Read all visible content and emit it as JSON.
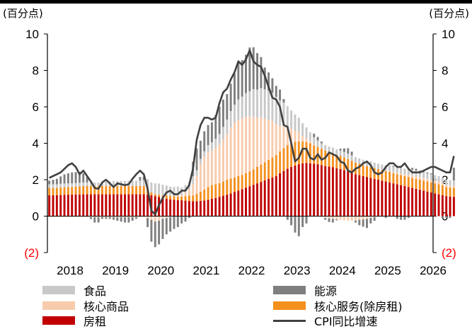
{
  "chart_data": {
    "type": "bar",
    "unit_left": "(百分点)",
    "unit_right": "(百分点)",
    "ylim": [
      -2,
      10
    ],
    "yticks": [
      "(2)",
      "0",
      "2",
      "4",
      "6",
      "8",
      "10"
    ],
    "xticks": [
      "2018",
      "2019",
      "2020",
      "2021",
      "2022",
      "2023",
      "2024",
      "2025",
      "2026"
    ],
    "start": "2018-01",
    "grid": false,
    "legend_position": "bottom",
    "colors": {
      "food": "#c8c8c8",
      "energy": "#7f7f7f",
      "core_goods": "#f8cbad",
      "core_services": "#f4901e",
      "rent": "#c00000",
      "cpi": "#404040",
      "negative_tick": "#ff0000"
    },
    "legend": {
      "food": "食品",
      "energy": "能源",
      "core_goods": "核心商品",
      "core_services": "核心服务(除房租)",
      "rent": "房租",
      "cpi": "CPI同比增速"
    },
    "series": [
      {
        "name": "房租",
        "key": "rent",
        "values": [
          1.15,
          1.15,
          1.15,
          1.16,
          1.17,
          1.18,
          1.18,
          1.19,
          1.19,
          1.2,
          1.2,
          1.2,
          1.2,
          1.2,
          1.2,
          1.2,
          1.2,
          1.2,
          1.2,
          1.2,
          1.2,
          1.2,
          1.2,
          1.2,
          1.2,
          1.2,
          1.18,
          1.15,
          1.1,
          1.05,
          0.98,
          0.95,
          0.92,
          0.9,
          0.88,
          0.87,
          0.85,
          0.83,
          0.82,
          0.82,
          0.84,
          0.86,
          0.9,
          0.95,
          1.0,
          1.06,
          1.12,
          1.18,
          1.25,
          1.32,
          1.4,
          1.48,
          1.56,
          1.64,
          1.72,
          1.8,
          1.88,
          1.96,
          2.04,
          2.12,
          2.2,
          2.35,
          2.48,
          2.6,
          2.7,
          2.78,
          2.85,
          2.9,
          2.92,
          2.9,
          2.88,
          2.85,
          2.8,
          2.75,
          2.72,
          2.68,
          2.62,
          2.58,
          2.52,
          2.45,
          2.38,
          2.3,
          2.25,
          2.2,
          2.15,
          2.1,
          2.05,
          2.0,
          1.95,
          1.9,
          1.85,
          1.8,
          1.75,
          1.7,
          1.65,
          1.6,
          1.55,
          1.5,
          1.45,
          1.4,
          1.35,
          1.3,
          1.25,
          1.2,
          1.15,
          1.1,
          1.08,
          1.06
        ]
      },
      {
        "name": "核心服务(除房租)",
        "key": "core_services",
        "values": [
          0.4,
          0.4,
          0.4,
          0.42,
          0.42,
          0.42,
          0.42,
          0.43,
          0.44,
          0.45,
          0.45,
          0.45,
          0.45,
          0.45,
          0.45,
          0.45,
          0.45,
          0.45,
          0.45,
          0.45,
          0.45,
          0.45,
          0.45,
          0.45,
          0.45,
          0.45,
          0.35,
          0.15,
          0.1,
          0.12,
          0.15,
          0.18,
          0.2,
          0.2,
          0.2,
          0.2,
          0.25,
          0.3,
          0.32,
          0.4,
          0.5,
          0.6,
          0.7,
          0.75,
          0.75,
          0.75,
          0.78,
          0.82,
          0.82,
          0.8,
          0.8,
          0.78,
          0.8,
          0.82,
          0.85,
          0.9,
          0.95,
          1.0,
          1.05,
          1.1,
          1.15,
          1.2,
          1.25,
          1.3,
          1.3,
          1.3,
          1.25,
          1.2,
          1.15,
          1.1,
          1.0,
          0.95,
          0.9,
          0.85,
          0.8,
          0.78,
          0.75,
          0.72,
          0.7,
          0.68,
          0.66,
          0.64,
          0.62,
          0.6,
          0.6,
          0.6,
          0.58,
          0.58,
          0.58,
          0.58,
          0.58,
          0.56,
          0.55,
          0.55,
          0.55,
          0.55,
          0.55,
          0.55,
          0.55,
          0.55,
          0.55,
          0.55,
          0.55,
          0.55,
          0.55,
          0.5,
          0.5,
          0.5
        ]
      },
      {
        "name": "核心商品",
        "key": "core_goods",
        "values": [
          -0.05,
          -0.06,
          -0.05,
          -0.06,
          -0.05,
          -0.06,
          -0.05,
          -0.04,
          -0.05,
          -0.06,
          -0.07,
          -0.06,
          -0.05,
          -0.05,
          -0.05,
          -0.05,
          -0.05,
          -0.05,
          -0.05,
          -0.05,
          -0.05,
          -0.05,
          -0.05,
          -0.05,
          -0.05,
          -0.05,
          -0.1,
          -0.2,
          -0.3,
          -0.25,
          -0.15,
          -0.1,
          -0.05,
          0.0,
          0.05,
          0.1,
          0.2,
          0.35,
          0.6,
          1.0,
          1.5,
          1.8,
          1.9,
          1.9,
          2.0,
          2.1,
          2.3,
          2.5,
          2.8,
          3.0,
          3.1,
          3.1,
          3.1,
          3.0,
          2.9,
          2.7,
          2.6,
          2.4,
          2.2,
          2.0,
          1.7,
          1.4,
          1.2,
          1.0,
          0.8,
          0.6,
          0.5,
          0.3,
          0.2,
          0.1,
          0.05,
          0.0,
          -0.05,
          -0.1,
          -0.12,
          -0.15,
          -0.18,
          -0.2,
          -0.22,
          -0.25,
          -0.25,
          -0.25,
          -0.2,
          -0.18,
          -0.15,
          -0.1,
          -0.05,
          0.0,
          0.0,
          0.02,
          0.05,
          0.05,
          0.08,
          0.1,
          0.1,
          0.12,
          0.15,
          0.15,
          0.15,
          0.15,
          0.15,
          0.15,
          0.15,
          0.15,
          0.12,
          0.1,
          0.1,
          0.1
        ]
      },
      {
        "name": "食品",
        "key": "food",
        "values": [
          0.2,
          0.2,
          0.2,
          0.2,
          0.2,
          0.2,
          0.2,
          0.2,
          0.2,
          0.2,
          0.2,
          0.2,
          0.2,
          0.2,
          0.22,
          0.24,
          0.26,
          0.28,
          0.28,
          0.28,
          0.28,
          0.28,
          0.3,
          0.3,
          0.3,
          0.32,
          0.5,
          0.55,
          0.6,
          0.62,
          0.6,
          0.55,
          0.5,
          0.5,
          0.5,
          0.4,
          0.4,
          0.4,
          0.45,
          0.3,
          0.3,
          0.3,
          0.4,
          0.45,
          0.5,
          0.6,
          0.7,
          0.8,
          0.9,
          1.0,
          1.1,
          1.2,
          1.3,
          1.4,
          1.5,
          1.55,
          1.6,
          1.6,
          1.6,
          1.55,
          1.5,
          1.4,
          1.3,
          1.15,
          1.0,
          0.9,
          0.8,
          0.7,
          0.6,
          0.5,
          0.4,
          0.35,
          0.3,
          0.3,
          0.3,
          0.3,
          0.3,
          0.3,
          0.3,
          0.3,
          0.3,
          0.3,
          0.3,
          0.3,
          0.3,
          0.3,
          0.3,
          0.3,
          0.3,
          0.3,
          0.3,
          0.3,
          0.3,
          0.3,
          0.3,
          0.3,
          0.3,
          0.3,
          0.3,
          0.3,
          0.3,
          0.3,
          0.3,
          0.3,
          0.3,
          0.3,
          0.3,
          0.3
        ]
      },
      {
        "name": "能源",
        "key": "energy",
        "values": [
          0.2,
          0.25,
          0.3,
          0.4,
          0.5,
          0.55,
          0.6,
          0.6,
          0.6,
          0.5,
          0.3,
          -0.1,
          -0.3,
          -0.3,
          -0.1,
          -0.1,
          -0.1,
          -0.15,
          -0.2,
          -0.25,
          -0.3,
          -0.3,
          -0.2,
          -0.1,
          0.2,
          0.2,
          -0.5,
          -1.2,
          -1.4,
          -1.3,
          -1.1,
          -0.9,
          -0.8,
          -0.7,
          -0.6,
          -0.4,
          -0.3,
          -0.1,
          0.8,
          1.2,
          1.0,
          1.1,
          1.1,
          1.1,
          1.3,
          1.5,
          1.5,
          1.4,
          1.5,
          1.7,
          2.0,
          2.0,
          2.1,
          2.4,
          2.3,
          2.0,
          1.7,
          1.2,
          1.0,
          0.8,
          0.6,
          0.6,
          0.2,
          -0.2,
          -0.5,
          -0.9,
          -1.1,
          -0.6,
          -0.4,
          0.0,
          0.2,
          0.2,
          0.1,
          -0.1,
          -0.2,
          -0.2,
          -0.05,
          0.1,
          0.2,
          0.3,
          0.2,
          -0.1,
          -0.3,
          -0.4,
          -0.5,
          -0.3,
          -0.2,
          0.0,
          0.0,
          -0.1,
          0.0,
          0.05,
          -0.15,
          -0.2,
          -0.2,
          -0.1,
          0.1,
          0.1,
          0.05,
          0.05,
          0.05,
          0.05,
          0.0,
          0.0,
          -0.1,
          -0.1,
          -0.1,
          0.7
        ]
      },
      {
        "name": "CPI同比增速",
        "key": "cpi",
        "values": [
          2.1,
          2.2,
          2.3,
          2.4,
          2.6,
          2.8,
          2.9,
          2.7,
          2.3,
          2.5,
          2.2,
          1.9,
          1.55,
          1.5,
          1.85,
          2.0,
          1.8,
          1.6,
          1.8,
          1.75,
          1.7,
          1.75,
          2.05,
          2.3,
          2.5,
          2.3,
          1.5,
          0.3,
          0.1,
          0.6,
          1.0,
          1.3,
          1.4,
          1.2,
          1.2,
          1.4,
          1.4,
          1.7,
          2.6,
          4.2,
          5.0,
          5.4,
          5.4,
          5.3,
          5.4,
          6.2,
          6.8,
          7.0,
          7.5,
          7.9,
          8.5,
          8.3,
          8.6,
          9.1,
          8.5,
          8.3,
          8.2,
          7.7,
          7.1,
          6.5,
          6.4,
          6.0,
          5.0,
          4.9,
          4.0,
          3.0,
          3.2,
          3.7,
          3.7,
          3.2,
          3.1,
          3.4,
          3.1,
          3.2,
          3.5,
          3.4,
          3.3,
          3.0,
          2.9,
          2.5,
          2.4,
          2.6,
          2.7,
          2.9,
          3.0,
          2.8,
          2.4,
          2.3,
          2.4,
          2.7,
          2.9,
          2.9,
          2.7,
          2.7,
          2.9,
          2.6,
          2.4,
          2.4,
          2.4,
          2.5,
          2.6,
          2.7,
          2.7,
          2.6,
          2.5,
          2.4,
          2.4,
          3.3
        ]
      }
    ]
  }
}
